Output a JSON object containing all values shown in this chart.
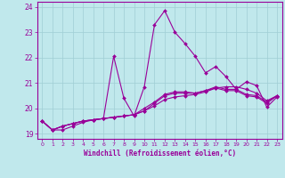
{
  "xlabel": "Windchill (Refroidissement éolien,°C)",
  "xlim": [
    -0.5,
    23.5
  ],
  "ylim": [
    18.8,
    24.2
  ],
  "yticks": [
    19,
    20,
    21,
    22,
    23,
    24
  ],
  "xticks": [
    0,
    1,
    2,
    3,
    4,
    5,
    6,
    7,
    8,
    9,
    10,
    11,
    12,
    13,
    14,
    15,
    16,
    17,
    18,
    19,
    20,
    21,
    22,
    23
  ],
  "background_color": "#c0e8ec",
  "line_color": "#990099",
  "grid_color": "#a0ced4",
  "lines": [
    {
      "x": [
        0,
        1,
        2,
        3,
        4,
        5,
        6,
        7,
        8,
        9,
        10,
        11,
        12,
        13,
        14,
        15,
        16,
        17,
        18,
        19,
        20,
        21,
        22,
        23
      ],
      "y": [
        19.5,
        19.15,
        19.15,
        19.3,
        19.45,
        19.55,
        19.6,
        22.05,
        20.4,
        19.7,
        20.85,
        23.3,
        23.85,
        23.0,
        22.55,
        22.05,
        21.4,
        21.65,
        21.25,
        20.75,
        21.05,
        20.9,
        20.05,
        20.45
      ]
    },
    {
      "x": [
        0,
        1,
        2,
        3,
        4,
        5,
        6,
        7,
        8,
        9,
        10,
        11,
        12,
        13,
        14,
        15,
        16,
        17,
        18,
        19,
        20,
        21,
        22,
        23
      ],
      "y": [
        19.5,
        19.15,
        19.3,
        19.4,
        19.5,
        19.55,
        19.6,
        19.65,
        19.7,
        19.75,
        19.9,
        20.1,
        20.35,
        20.45,
        20.5,
        20.55,
        20.65,
        20.8,
        20.85,
        20.85,
        20.75,
        20.6,
        20.3,
        20.5
      ]
    },
    {
      "x": [
        0,
        1,
        2,
        3,
        4,
        5,
        6,
        7,
        8,
        9,
        10,
        11,
        12,
        13,
        14,
        15,
        16,
        17,
        18,
        19,
        20,
        21,
        22,
        23
      ],
      "y": [
        19.5,
        19.15,
        19.3,
        19.4,
        19.5,
        19.55,
        19.6,
        19.65,
        19.7,
        19.75,
        19.9,
        20.2,
        20.5,
        20.6,
        20.6,
        20.6,
        20.7,
        20.85,
        20.75,
        20.75,
        20.55,
        20.5,
        20.25,
        20.5
      ]
    },
    {
      "x": [
        0,
        1,
        2,
        3,
        4,
        5,
        6,
        7,
        8,
        9,
        10,
        11,
        12,
        13,
        14,
        15,
        16,
        17,
        18,
        19,
        20,
        21,
        22,
        23
      ],
      "y": [
        19.5,
        19.15,
        19.3,
        19.4,
        19.5,
        19.55,
        19.6,
        19.65,
        19.7,
        19.75,
        20.0,
        20.25,
        20.55,
        20.65,
        20.65,
        20.6,
        20.7,
        20.8,
        20.7,
        20.7,
        20.5,
        20.45,
        20.2,
        20.5
      ]
    }
  ]
}
